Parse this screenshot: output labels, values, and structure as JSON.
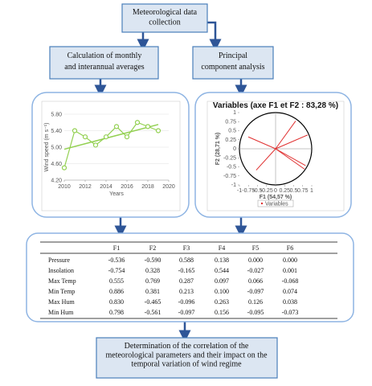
{
  "nodes": [
    {
      "label": "Meteorological data collection"
    },
    {
      "label": "Calculation of monthly and interannual averages"
    },
    {
      "label": "Principal component analysis"
    },
    {
      "label": "Determination of the correlation of the meteorological parameters and their impact on the temporal variation of wind regime"
    }
  ],
  "line_chart": {
    "type": "line",
    "y_label": "Wind speed (m s⁻¹)",
    "x_label": "Years",
    "color": "#92d050",
    "x": [
      2010,
      2011,
      2012,
      2013,
      2014,
      2015,
      2016,
      2017,
      2018,
      2019
    ],
    "values": [
      4.5,
      5.4,
      5.25,
      5.05,
      5.25,
      5.5,
      5.25,
      5.6,
      5.5,
      5.4
    ],
    "trend": {
      "x": [
        2010,
        2019
      ],
      "values": [
        4.95,
        5.55
      ]
    },
    "xlim": [
      2010,
      2020
    ],
    "xticks": [
      2010,
      2012,
      2014,
      2016,
      2018,
      2020
    ],
    "ylim": [
      4.2,
      5.8
    ],
    "yticks": [
      {
        "value": 4.2,
        "label": "4.20"
      },
      {
        "value": 4.6,
        "label": "4.60"
      },
      {
        "value": 5,
        "label": "5.00"
      },
      {
        "value": 5.4,
        "label": "5.40"
      },
      {
        "value": 5.8,
        "label": "5.80"
      }
    ],
    "grid": true
  },
  "pca_chart": {
    "type": "correlation-circle",
    "title": "Variables (axe F1 et F2 : 83,28 %)",
    "x_label": "F1 (54,57 %)",
    "y_label": "F2 (28,71 %)",
    "legend": "Variables",
    "color": "#e03030",
    "xlim": [
      -1,
      1
    ],
    "xticks": [
      -1,
      -0.75,
      -0.5,
      -0.25,
      0,
      0.25,
      0.5,
      0.75,
      1
    ],
    "ylim": [
      -1,
      1
    ],
    "yticks": [
      -1,
      -0.75,
      -0.5,
      -0.25,
      0,
      0.25,
      0.5,
      0.75,
      1
    ]
  },
  "table": {
    "columns": [
      "F1",
      "F2",
      "F3",
      "F4",
      "F5",
      "F6"
    ],
    "rows": [
      {
        "label": "Pressure",
        "values": [
          "-0.536",
          "-0.590",
          "0.588",
          "0.138",
          "0.000",
          "0.000"
        ]
      },
      {
        "label": "Insolation",
        "values": [
          "-0.754",
          "0.328",
          "-0.165",
          "0.544",
          "-0.027",
          "0.001"
        ]
      },
      {
        "label": "Max Temp",
        "values": [
          "0.555",
          "0.769",
          "0.287",
          "0.097",
          "0.066",
          "-0.068"
        ]
      },
      {
        "label": "Min Temp",
        "values": [
          "0.886",
          "0.381",
          "0.213",
          "0.100",
          "-0.097",
          "0.074"
        ]
      },
      {
        "label": "Max  Hum",
        "values": [
          "0.830",
          "-0.465",
          "-0.096",
          "0.263",
          "0.126",
          "0.038"
        ]
      },
      {
        "label": "Min  Hum",
        "values": [
          "0.798",
          "-0.561",
          "-0.097",
          "0.156",
          "-0.095",
          "-0.073"
        ]
      }
    ]
  }
}
